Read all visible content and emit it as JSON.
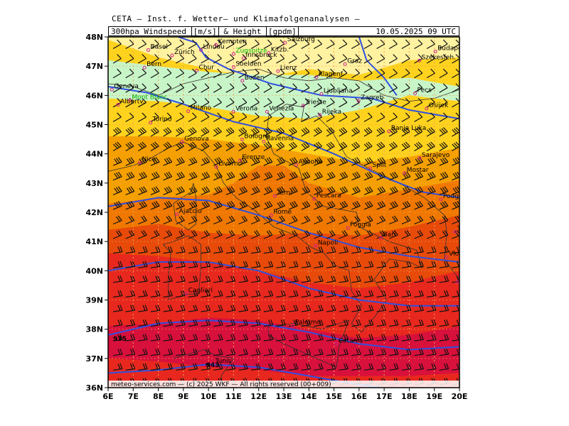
{
  "header": {
    "institute": "CETA — Inst. f. Wetter— und Klimafolgenanalysen —",
    "product_prefix": "300hpa Windspeed",
    "speed_unit": "[m/s]",
    "product_mid": "& Height",
    "height_unit": "[gpdm]",
    "valid_time": "10.05.2025 09 UTC"
  },
  "map": {
    "lon_range": [
      6,
      20
    ],
    "lat_range": [
      36,
      48
    ],
    "lon_labels": [
      "6E",
      "7E",
      "8E",
      "9E",
      "10E",
      "11E",
      "12E",
      "13E",
      "14E",
      "15E",
      "16E",
      "17E",
      "18E",
      "19E",
      "20E"
    ],
    "lat_labels": [
      "48N",
      "47N",
      "46N",
      "45N",
      "44N",
      "43N",
      "42N",
      "41N",
      "40N",
      "39N",
      "38N",
      "37N",
      "36N"
    ],
    "colors": {
      "light_green": "#c8f5c8",
      "pale_yellow": "#fff2a0",
      "yellow": "#ffd21e",
      "orange": "#f5a000",
      "dark_orange": "#f07800",
      "red_orange": "#e84a0a",
      "red": "#e8281e",
      "crimson": "#d8103c",
      "isoline": "#3050e0",
      "gridline": "#f0a050"
    },
    "contour_labels": [
      {
        "text": "935",
        "lon": 6.2,
        "lat": 37.6
      },
      {
        "text": "943",
        "lon": 9.9,
        "lat": 36.7
      }
    ],
    "cities": [
      {
        "name": "Basel",
        "lon": 7.6,
        "lat": 47.55,
        "color": "#000000"
      },
      {
        "name": "Zürich",
        "lon": 8.55,
        "lat": 47.37,
        "color": "#000000"
      },
      {
        "name": "Lindau",
        "lon": 9.7,
        "lat": 47.55,
        "color": "#000000"
      },
      {
        "name": "Kempten",
        "lon": 10.3,
        "lat": 47.73,
        "color": "#000000"
      },
      {
        "name": "Zugspitze",
        "lon": 11.0,
        "lat": 47.42,
        "color": "#00b000"
      },
      {
        "name": "Kitzb.",
        "lon": 12.4,
        "lat": 47.45,
        "color": "#000000"
      },
      {
        "name": "Salzburg",
        "lon": 13.05,
        "lat": 47.8,
        "color": "#000000"
      },
      {
        "name": "Innsbruck",
        "lon": 11.4,
        "lat": 47.27,
        "color": "#000000"
      },
      {
        "name": "Bern",
        "lon": 7.45,
        "lat": 46.95,
        "color": "#000000"
      },
      {
        "name": "Chur",
        "lon": 9.53,
        "lat": 46.85,
        "color": "#000000"
      },
      {
        "name": "Soelden",
        "lon": 11.0,
        "lat": 46.97,
        "color": "#000000"
      },
      {
        "name": "Lienz",
        "lon": 12.77,
        "lat": 46.83,
        "color": "#000000"
      },
      {
        "name": "Graz",
        "lon": 15.44,
        "lat": 47.07,
        "color": "#000000"
      },
      {
        "name": "Budapest",
        "lon": 19.04,
        "lat": 47.5,
        "color": "#000000"
      },
      {
        "name": "Szekesfeh.",
        "lon": 18.4,
        "lat": 47.19,
        "color": "#000000"
      },
      {
        "name": "Bozen",
        "lon": 11.35,
        "lat": 46.5,
        "color": "#000000"
      },
      {
        "name": "Klagenf.",
        "lon": 14.3,
        "lat": 46.62,
        "color": "#000000"
      },
      {
        "name": "Geneva",
        "lon": 6.15,
        "lat": 46.2,
        "color": "#000000"
      },
      {
        "name": "Albertv.",
        "lon": 6.4,
        "lat": 45.68,
        "color": "#000000"
      },
      {
        "name": "Mont Blanc",
        "lon": 6.86,
        "lat": 45.83,
        "color": "#00b000"
      },
      {
        "name": "Ljubljana",
        "lon": 14.5,
        "lat": 46.05,
        "color": "#000000"
      },
      {
        "name": "Zagreb",
        "lon": 15.98,
        "lat": 45.81,
        "color": "#000000"
      },
      {
        "name": "Pecs",
        "lon": 18.23,
        "lat": 46.07,
        "color": "#000000"
      },
      {
        "name": "Venezia",
        "lon": 12.33,
        "lat": 45.44,
        "color": "#000000"
      },
      {
        "name": "Trieste",
        "lon": 13.77,
        "lat": 45.65,
        "color": "#000000"
      },
      {
        "name": "Milano",
        "lon": 9.19,
        "lat": 45.46,
        "color": "#000000"
      },
      {
        "name": "Verona",
        "lon": 10.99,
        "lat": 45.44,
        "color": "#000000"
      },
      {
        "name": "Rijeka",
        "lon": 14.44,
        "lat": 45.33,
        "color": "#000000"
      },
      {
        "name": "Osijek",
        "lon": 18.69,
        "lat": 45.55,
        "color": "#000000"
      },
      {
        "name": "Torino",
        "lon": 7.69,
        "lat": 45.07,
        "color": "#000000"
      },
      {
        "name": "Banja Luka",
        "lon": 17.19,
        "lat": 44.77,
        "color": "#000000"
      },
      {
        "name": "Bologna",
        "lon": 11.34,
        "lat": 44.49,
        "color": "#000000"
      },
      {
        "name": "Genova",
        "lon": 8.95,
        "lat": 44.41,
        "color": "#000000"
      },
      {
        "name": "Ravenna",
        "lon": 12.2,
        "lat": 44.42,
        "color": "#000000"
      },
      {
        "name": "Nice",
        "lon": 7.26,
        "lat": 43.7,
        "color": "#000000"
      },
      {
        "name": "Firenze",
        "lon": 11.25,
        "lat": 43.77,
        "color": "#000000"
      },
      {
        "name": "Split",
        "lon": 16.44,
        "lat": 43.51,
        "color": "#000000"
      },
      {
        "name": "Sarajevo",
        "lon": 18.41,
        "lat": 43.85,
        "color": "#000000"
      },
      {
        "name": "Ancona",
        "lon": 13.5,
        "lat": 43.62,
        "color": "#000000"
      },
      {
        "name": "Livorno",
        "lon": 10.31,
        "lat": 43.55,
        "color": "#000000"
      },
      {
        "name": "Mostar",
        "lon": 17.81,
        "lat": 43.34,
        "color": "#000000"
      },
      {
        "name": "Terni",
        "lon": 12.64,
        "lat": 42.56,
        "color": "#000000"
      },
      {
        "name": "Pescara",
        "lon": 14.21,
        "lat": 42.46,
        "color": "#000000"
      },
      {
        "name": "Podgorica",
        "lon": 19.26,
        "lat": 42.44,
        "color": "#000000"
      },
      {
        "name": "Ajaccio",
        "lon": 8.74,
        "lat": 41.93,
        "color": "#000000"
      },
      {
        "name": "Rome",
        "lon": 12.5,
        "lat": 41.9,
        "color": "#000000"
      },
      {
        "name": "Tirana",
        "lon": 19.82,
        "lat": 41.33,
        "color": "#000000"
      },
      {
        "name": "Foggia",
        "lon": 15.55,
        "lat": 41.46,
        "color": "#000000"
      },
      {
        "name": "Napoli",
        "lon": 14.27,
        "lat": 40.85,
        "color": "#000000"
      },
      {
        "name": "Bari",
        "lon": 16.87,
        "lat": 41.12,
        "color": "#000000"
      },
      {
        "name": "Vlora",
        "lon": 19.49,
        "lat": 40.47,
        "color": "#000000"
      },
      {
        "name": "Korfu",
        "lon": 19.92,
        "lat": 39.62,
        "color": "#000000"
      },
      {
        "name": "Cagliari",
        "lon": 9.11,
        "lat": 39.22,
        "color": "#000000"
      },
      {
        "name": "Palermo",
        "lon": 13.36,
        "lat": 38.12,
        "color": "#000000"
      },
      {
        "name": "Catania",
        "lon": 15.09,
        "lat": 37.5,
        "color": "#000000"
      },
      {
        "name": "Tunis",
        "lon": 10.18,
        "lat": 36.8,
        "color": "#000000"
      }
    ]
  },
  "footer": {
    "credit": "meteo-services.com — (c) 2025 WKF — All rights reserved (00+009)"
  }
}
